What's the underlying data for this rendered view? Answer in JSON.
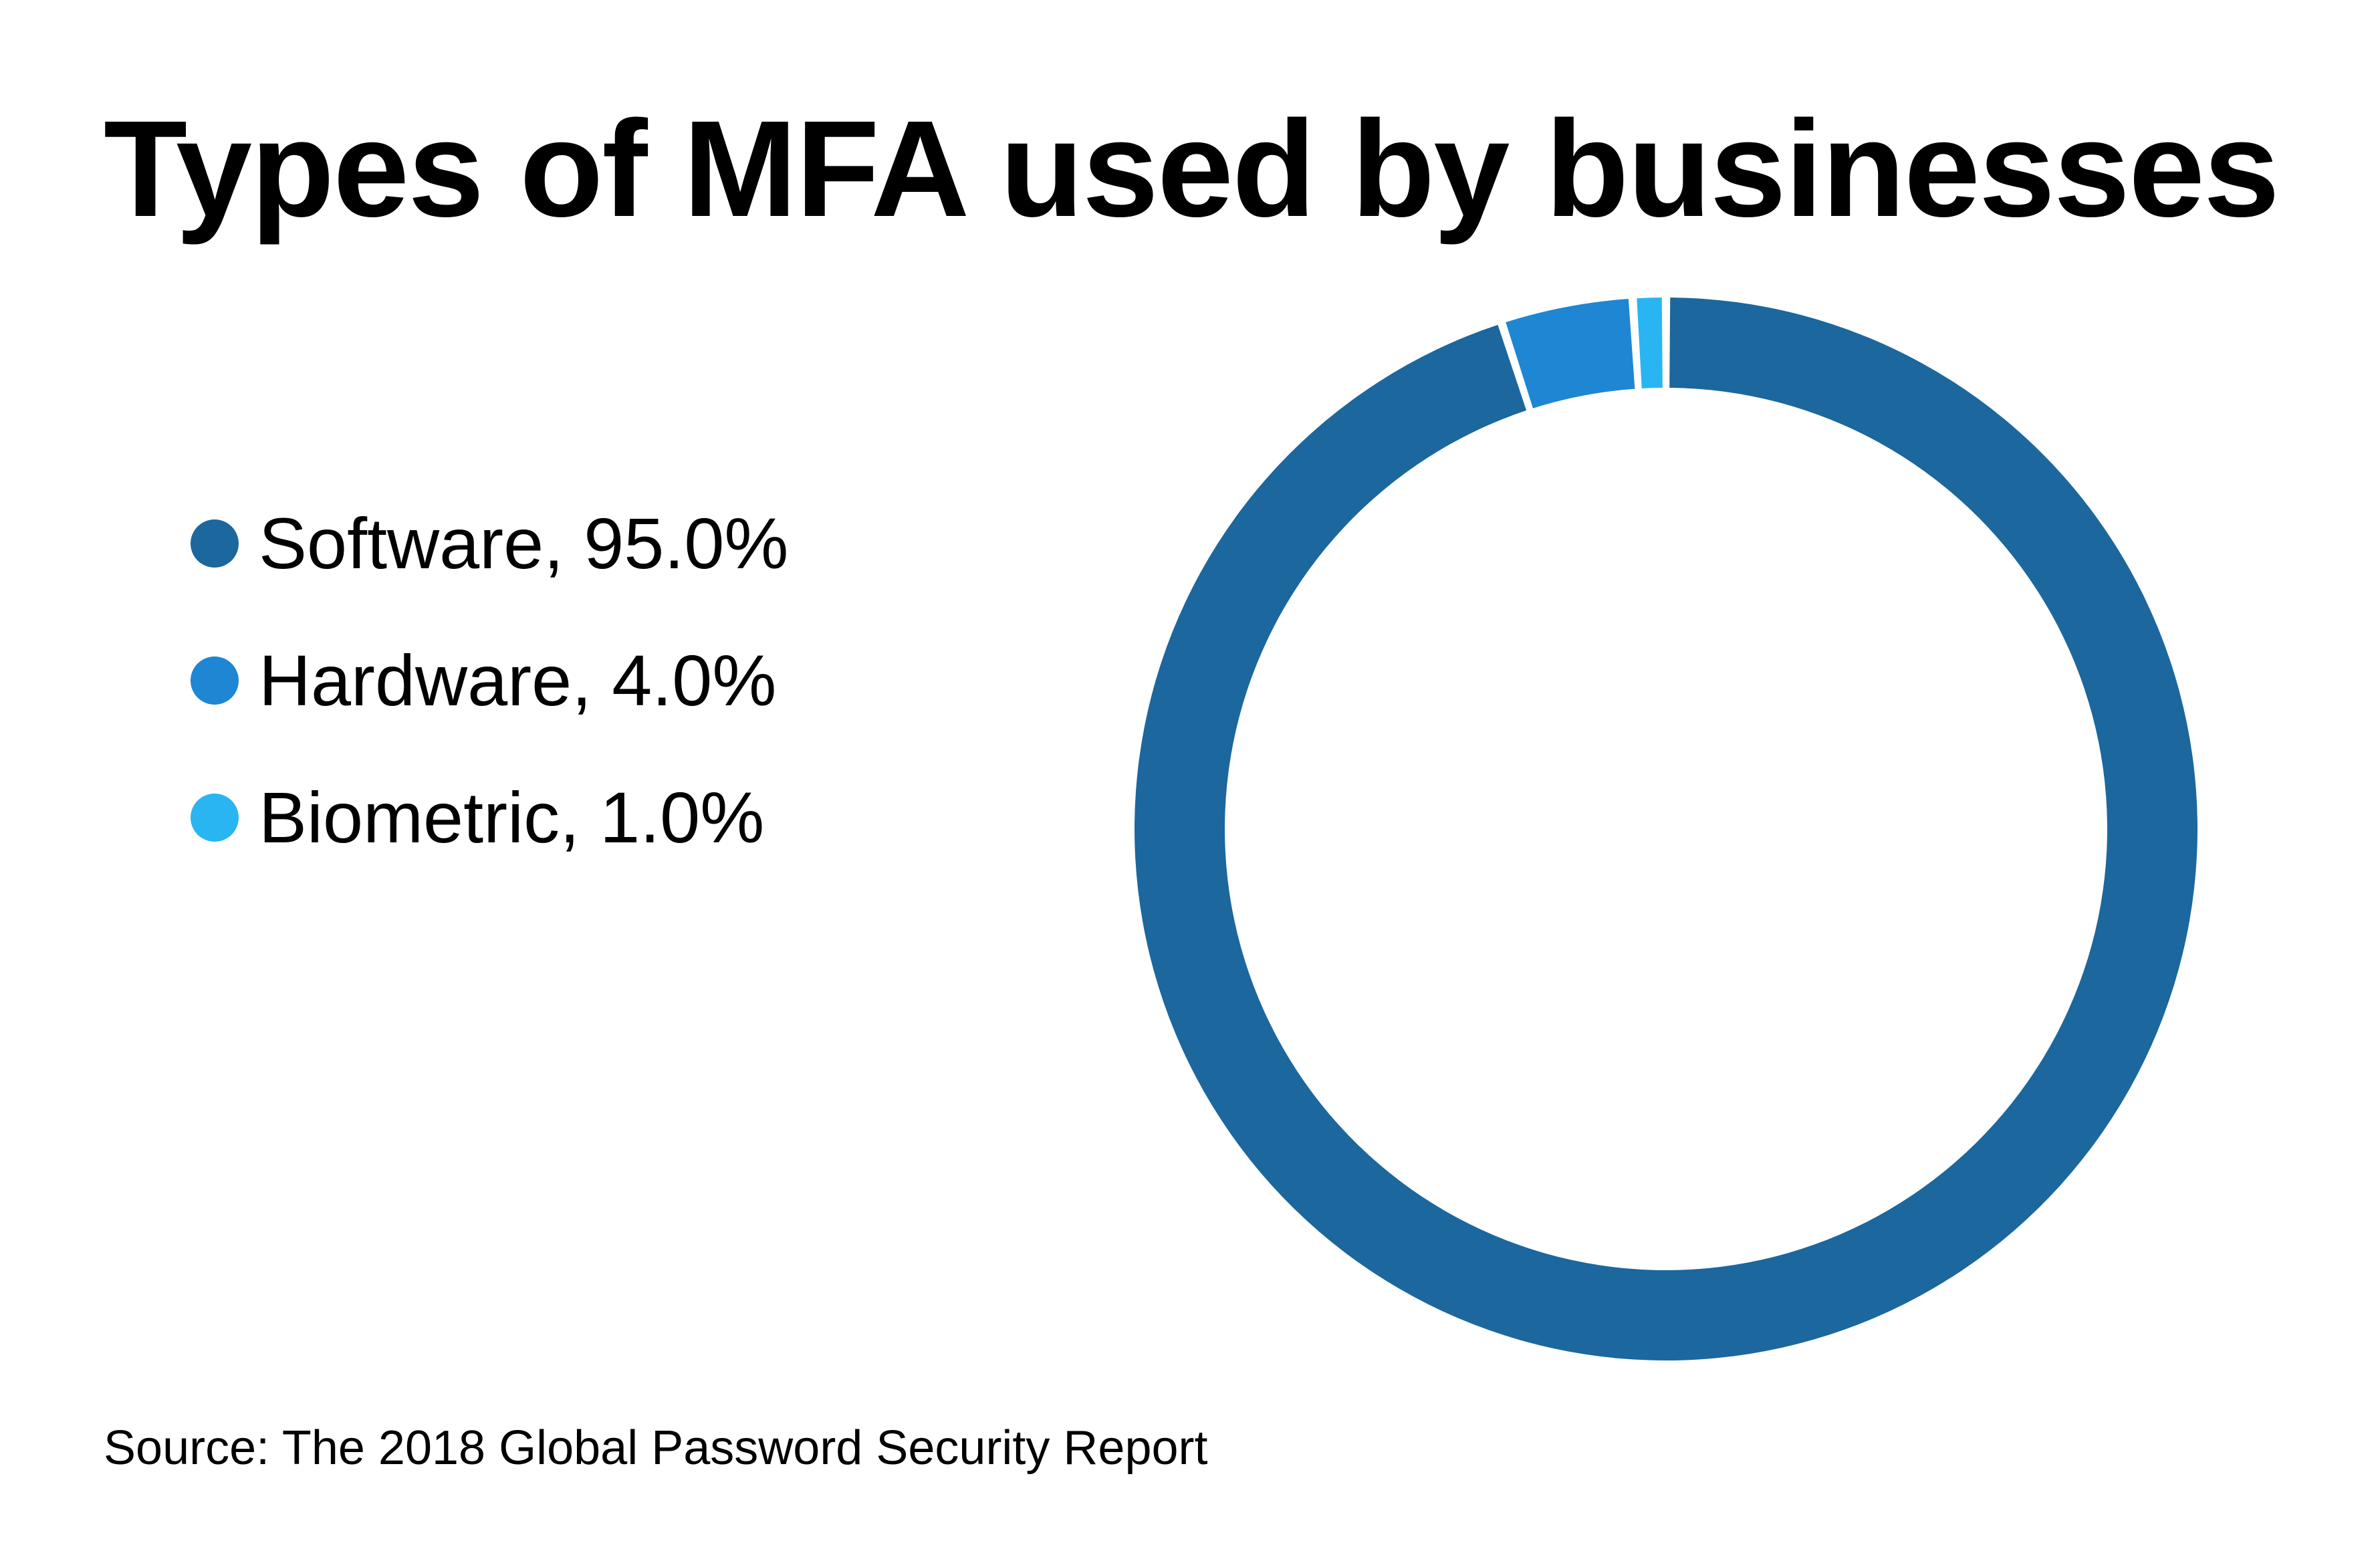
{
  "chart_data": {
    "type": "pie",
    "title": "Types of MFA used by businesses",
    "categories": [
      "Software",
      "Hardware",
      "Biometric"
    ],
    "values": [
      95.0,
      4.0,
      1.0
    ],
    "unit": "%",
    "legend": [
      {
        "label": "Software, 95.0%",
        "color": "#1b679e"
      },
      {
        "label": "Hardware, 4.0%",
        "color": "#1e86d2"
      },
      {
        "label": "Biometric, 1.0%",
        "color": "#29b5f2"
      }
    ],
    "legend_position": "left",
    "source": "Source: The 2018 Global Password Security Report"
  }
}
